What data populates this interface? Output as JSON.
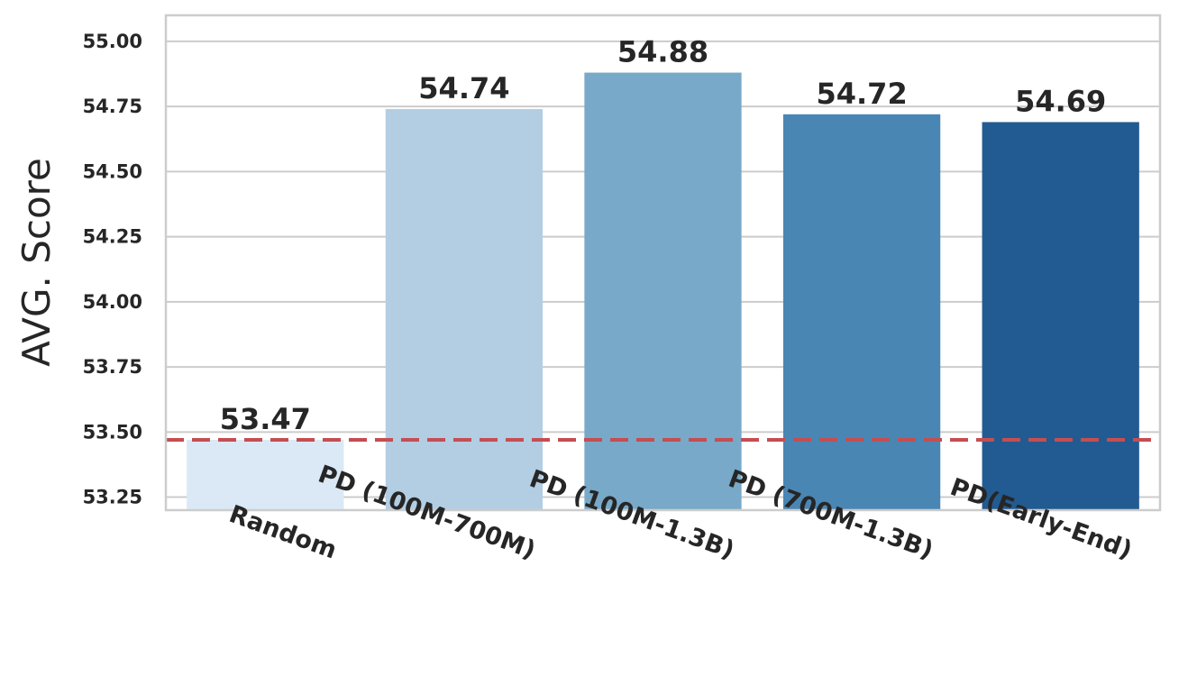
{
  "chart_data": {
    "type": "bar",
    "title": "",
    "xlabel": "",
    "ylabel": "AVG. Score",
    "categories": [
      "Random",
      "PD (100M-700M)",
      "PD (100M-1.3B)",
      "PD (700M-1.3B)",
      "PD(Early-End)"
    ],
    "values": [
      53.47,
      54.74,
      54.88,
      54.72,
      54.69
    ],
    "data_labels": [
      "53.47",
      "54.74",
      "54.88",
      "54.72",
      "54.69"
    ],
    "bar_colors": [
      "#dbe9f6",
      "#b3cde3",
      "#78a9c8",
      "#4a86b3",
      "#225b91"
    ],
    "ylim": [
      53.2,
      55.1
    ],
    "yticks": [
      53.25,
      53.5,
      53.75,
      54.0,
      54.25,
      54.5,
      54.75,
      55.0
    ],
    "ytick_labels": [
      "53.25",
      "53.50",
      "53.75",
      "54.00",
      "54.25",
      "54.50",
      "54.75",
      "55.00"
    ],
    "reference_line": {
      "value": 53.47,
      "style": "dashed",
      "color": "#c44e52"
    },
    "grid": true,
    "legend": "none"
  }
}
